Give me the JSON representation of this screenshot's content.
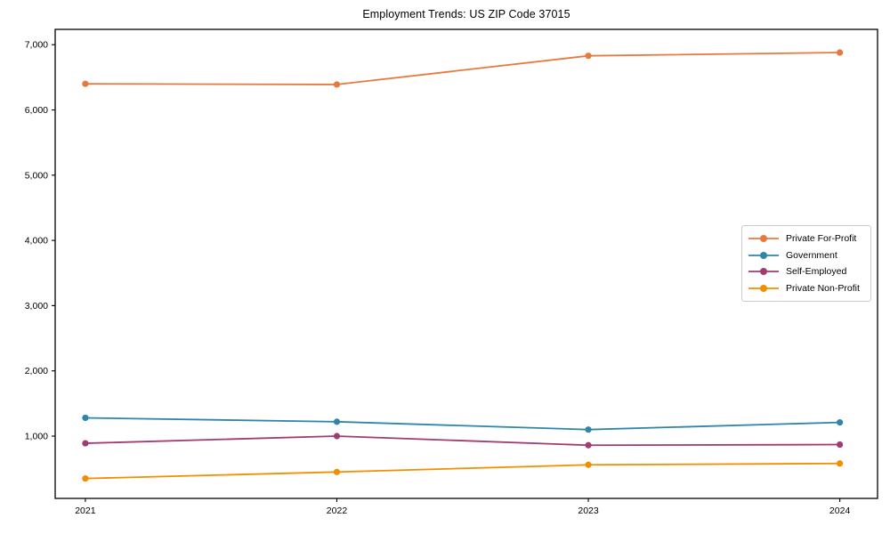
{
  "figure": {
    "background": "#ffffff",
    "spine_color": "#000000",
    "tick_label_color": "#000000"
  },
  "chart_data": {
    "type": "line",
    "title": "Employment Trends: US ZIP Code 37015",
    "xlabel": "",
    "ylabel": "",
    "x": [
      2021,
      2022,
      2023,
      2024
    ],
    "categories": [
      "2021",
      "2022",
      "2023",
      "2024"
    ],
    "series": [
      {
        "name": "Private For-Profit",
        "color": "#E8793E",
        "values": [
          6400,
          6390,
          6830,
          6880
        ]
      },
      {
        "name": "Government",
        "color": "#2E86AB",
        "values": [
          1280,
          1220,
          1100,
          1210
        ]
      },
      {
        "name": "Self-Employed",
        "color": "#A23B72",
        "values": [
          890,
          1000,
          860,
          870
        ]
      },
      {
        "name": "Private Non-Profit",
        "color": "#F18F01",
        "values": [
          350,
          450,
          560,
          580
        ]
      }
    ],
    "yticks": {
      "values": [
        1000,
        2000,
        3000,
        4000,
        5000,
        6000,
        7000
      ],
      "labels": [
        "1,000",
        "2,000",
        "3,000",
        "4,000",
        "5,000",
        "6,000",
        "7,000"
      ]
    },
    "xticks": {
      "values": [
        2021,
        2022,
        2023,
        2024
      ],
      "labels": [
        "2021",
        "2022",
        "2023",
        "2024"
      ]
    },
    "xlim": [
      2020.88,
      2024.15
    ],
    "ylim": [
      45,
      7235
    ],
    "grid": false,
    "legend_position": "center-right"
  }
}
